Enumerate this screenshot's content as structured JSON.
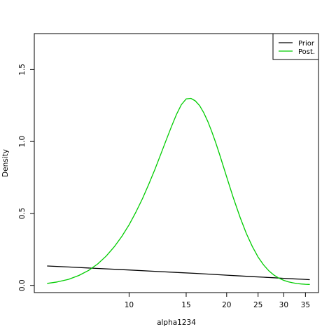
{
  "chart_data": {
    "type": "line",
    "xlabel": "alpha1234",
    "ylabel": "Density",
    "x_scale": "log",
    "xlim": [
      5.1,
      38.4
    ],
    "ylim": [
      -0.05,
      1.75
    ],
    "x_ticks": [
      10,
      15,
      20,
      25,
      30,
      35
    ],
    "y_ticks": [
      0.0,
      0.5,
      1.0,
      1.5
    ],
    "legend_position": "top-right",
    "series": [
      {
        "name": "Prior",
        "color": "#000000",
        "x": [
          5.6,
          6.5,
          8,
          10,
          12,
          14,
          16,
          18,
          20,
          22,
          24,
          26,
          28,
          30,
          32,
          34,
          36
        ],
        "y": [
          0.135,
          0.128,
          0.118,
          0.107,
          0.098,
          0.09,
          0.084,
          0.077,
          0.071,
          0.066,
          0.061,
          0.057,
          0.053,
          0.049,
          0.046,
          0.043,
          0.04
        ]
      },
      {
        "name": "Post.",
        "color": "#00cc00",
        "x": [
          5.6,
          6.0,
          6.5,
          7.0,
          7.5,
          8.0,
          8.5,
          9.0,
          9.5,
          10.0,
          10.5,
          11.0,
          11.5,
          12.0,
          12.5,
          13.0,
          13.5,
          14.0,
          14.5,
          15.0,
          15.5,
          16.0,
          16.5,
          17.0,
          17.5,
          18.0,
          18.5,
          19.0,
          19.5,
          20.0,
          21.0,
          22.0,
          23.0,
          24.0,
          25.0,
          26.0,
          27.0,
          28.0,
          29.0,
          30.0,
          31.0,
          32.0,
          33.0,
          34.0,
          35.0,
          36.0
        ],
        "y": [
          0.014,
          0.024,
          0.042,
          0.069,
          0.104,
          0.149,
          0.204,
          0.268,
          0.341,
          0.421,
          0.51,
          0.604,
          0.703,
          0.804,
          0.907,
          1.007,
          1.102,
          1.188,
          1.256,
          1.296,
          1.3,
          1.283,
          1.25,
          1.2,
          1.138,
          1.068,
          0.993,
          0.913,
          0.833,
          0.754,
          0.605,
          0.473,
          0.361,
          0.27,
          0.197,
          0.142,
          0.101,
          0.071,
          0.05,
          0.035,
          0.025,
          0.018,
          0.013,
          0.01,
          0.008,
          0.007
        ]
      }
    ],
    "y_tick_labels": [
      "0.0",
      "0.5",
      "1.0",
      "1.5"
    ],
    "x_tick_labels": [
      "10",
      "15",
      "20",
      "25",
      "30",
      "35"
    ],
    "legend": [
      "Prior",
      "Post."
    ]
  }
}
